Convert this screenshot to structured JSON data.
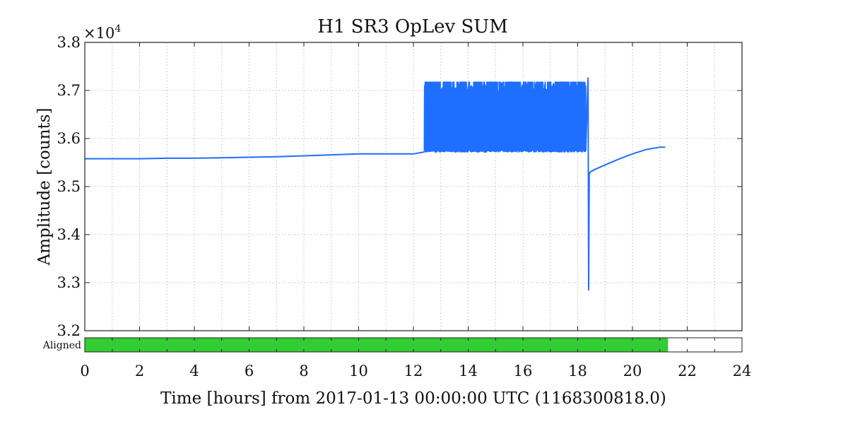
{
  "chart_data": {
    "type": "line",
    "title": "H1 SR3 OpLev SUM",
    "xlabel": "Time [hours] from 2017-01-13 00:00:00 UTC (1168300818.0)",
    "ylabel": "Amplitude [counts]",
    "xlim": [
      0,
      24
    ],
    "ylim": [
      3.2,
      3.8
    ],
    "y_multiplier": "×10",
    "y_multiplier_exp": "4",
    "x_ticks": [
      0,
      2,
      4,
      6,
      8,
      10,
      12,
      14,
      16,
      18,
      20,
      22,
      24
    ],
    "y_ticks": [
      3.2,
      3.3,
      3.4,
      3.5,
      3.6,
      3.7,
      3.8
    ],
    "grid": true,
    "series": [
      {
        "color": "#1f6fff",
        "x": [
          0,
          1,
          2,
          3,
          4,
          5,
          6,
          7,
          8,
          9,
          10,
          11,
          12,
          12.4
        ],
        "y": [
          3.558,
          3.558,
          3.558,
          3.559,
          3.559,
          3.56,
          3.561,
          3.562,
          3.564,
          3.566,
          3.568,
          3.568,
          3.568,
          3.572
        ]
      },
      {
        "color": "#1f6fff",
        "style": "oscillating",
        "x_range": [
          12.4,
          18.3
        ],
        "y_low": 3.572,
        "y_high": 3.717
      },
      {
        "color": "#1f6fff",
        "x": [
          18.3,
          18.38,
          18.4,
          18.42,
          18.45,
          18.6,
          19,
          19.5,
          20,
          20.5,
          21,
          21.2
        ],
        "y": [
          3.585,
          3.726,
          3.285,
          3.525,
          3.53,
          3.535,
          3.545,
          3.557,
          3.568,
          3.577,
          3.582,
          3.582
        ]
      }
    ],
    "segment_bar": {
      "label": "Aligned",
      "color": "#33cc33",
      "active_range": [
        0,
        21.3
      ]
    }
  }
}
